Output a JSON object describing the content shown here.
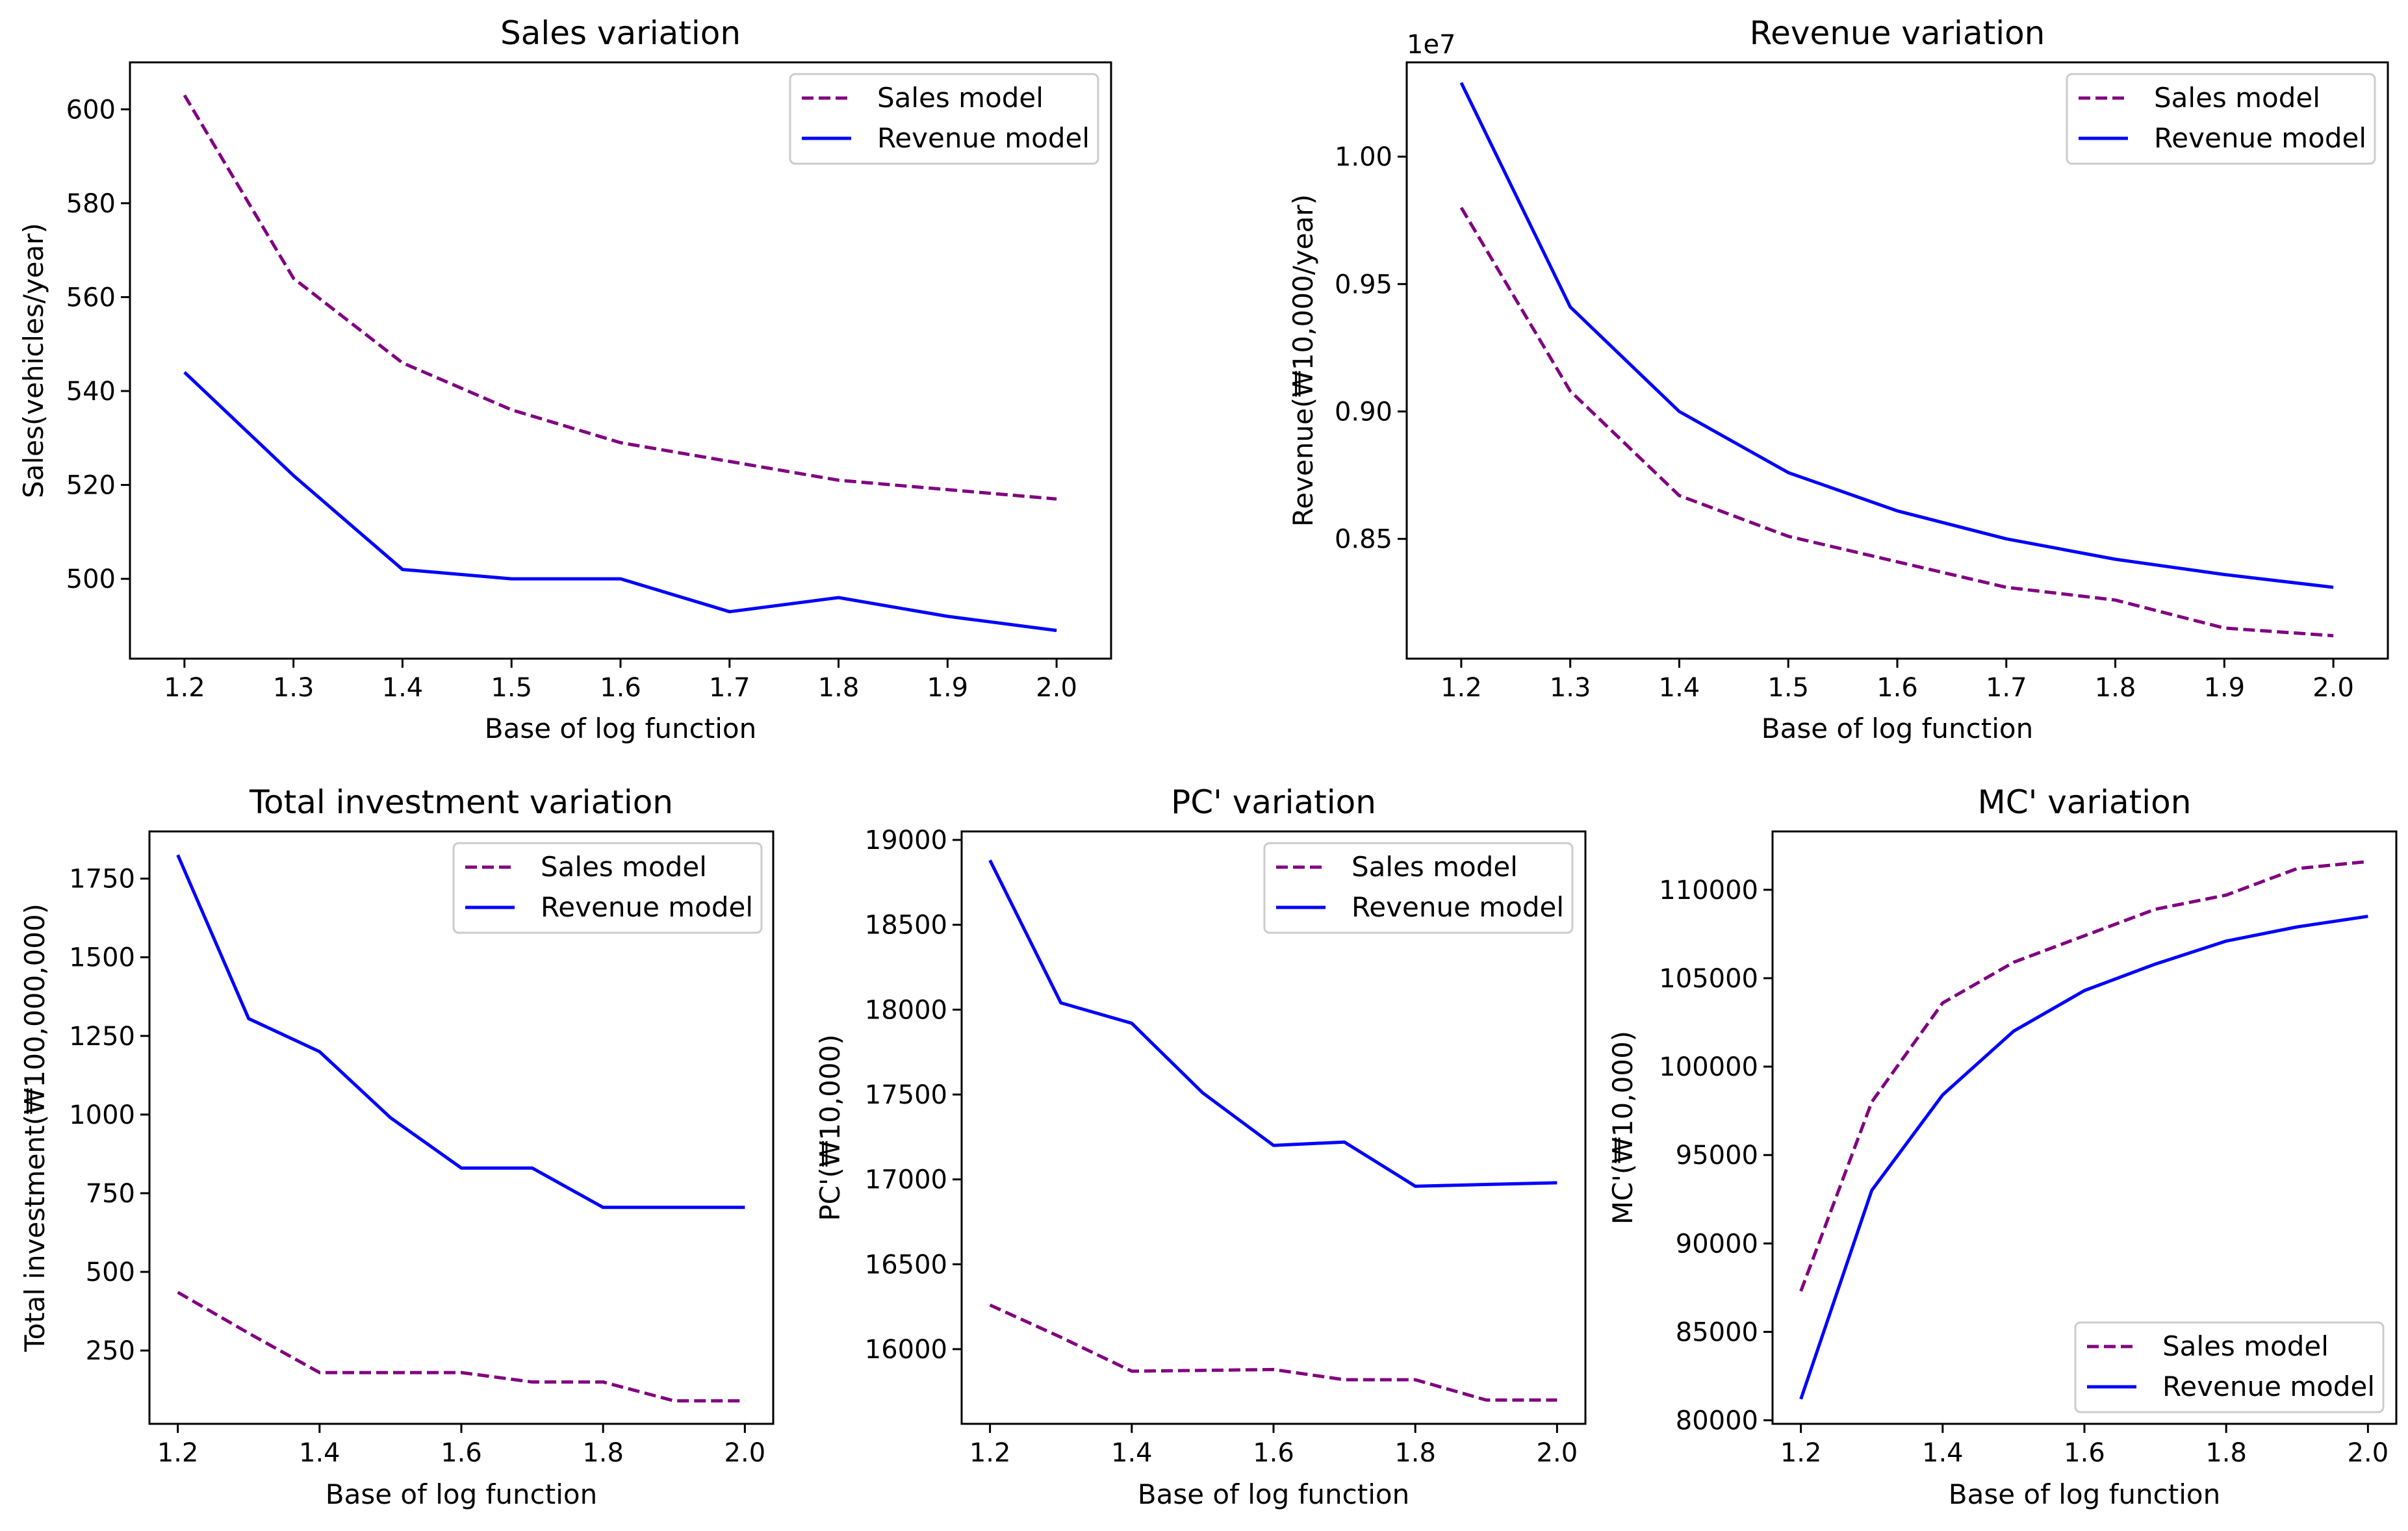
{
  "figure": {
    "colors": {
      "sales": "#800080",
      "revenue": "#0000ff"
    }
  },
  "chart_data": [
    {
      "type": "line",
      "title": "Sales variation",
      "xlabel": "Base of log function",
      "ylabel": "Sales(vehicles/year)",
      "xlim": [
        1.15,
        2.05
      ],
      "ylim": [
        483,
        610
      ],
      "xticks": [
        1.2,
        1.3,
        1.4,
        1.5,
        1.6,
        1.7,
        1.8,
        1.9,
        2.0
      ],
      "xtick_labels": [
        "1.2",
        "1.3",
        "1.4",
        "1.5",
        "1.6",
        "1.7",
        "1.8",
        "1.9",
        "2.0"
      ],
      "yticks": [
        500,
        520,
        540,
        560,
        580,
        600
      ],
      "ytick_labels": [
        "500",
        "520",
        "540",
        "560",
        "580",
        "600"
      ],
      "offset_label": "",
      "legend_position": "upper right",
      "x": [
        1.2,
        1.3,
        1.4,
        1.5,
        1.6,
        1.7,
        1.8,
        1.9,
        2.0
      ],
      "series": [
        {
          "name": "Sales model",
          "style": "dashed",
          "color": "#800080",
          "values": [
            603,
            564,
            546,
            536,
            529,
            525,
            521,
            519,
            517
          ]
        },
        {
          "name": "Revenue model",
          "style": "solid",
          "color": "#0000ff",
          "values": [
            544,
            522,
            502,
            500,
            500,
            493,
            496,
            492,
            489
          ]
        }
      ]
    },
    {
      "type": "line",
      "title": "Revenue variation",
      "xlabel": "Base of log function",
      "ylabel": "Revenue(₩10,000/year)",
      "xlim": [
        1.15,
        2.05
      ],
      "ylim": [
        0.803,
        1.037
      ],
      "xticks": [
        1.2,
        1.3,
        1.4,
        1.5,
        1.6,
        1.7,
        1.8,
        1.9,
        2.0
      ],
      "xtick_labels": [
        "1.2",
        "1.3",
        "1.4",
        "1.5",
        "1.6",
        "1.7",
        "1.8",
        "1.9",
        "2.0"
      ],
      "yticks": [
        0.85,
        0.9,
        0.95,
        1.0
      ],
      "ytick_labels": [
        "0.85",
        "0.90",
        "0.95",
        "1.00"
      ],
      "offset_label": "1e7",
      "legend_position": "upper right",
      "x": [
        1.2,
        1.3,
        1.4,
        1.5,
        1.6,
        1.7,
        1.8,
        1.9,
        2.0
      ],
      "series": [
        {
          "name": "Sales model",
          "style": "dashed",
          "color": "#800080",
          "values": [
            0.98,
            0.908,
            0.867,
            0.851,
            0.841,
            0.831,
            0.826,
            0.815,
            0.812
          ]
        },
        {
          "name": "Revenue model",
          "style": "solid",
          "color": "#0000ff",
          "values": [
            1.029,
            0.941,
            0.9,
            0.876,
            0.861,
            0.85,
            0.842,
            0.836,
            0.831
          ]
        }
      ]
    },
    {
      "type": "line",
      "title": "Total investment variation",
      "xlabel": "Base of log function",
      "ylabel": "Total investment(₩100,000,000)",
      "xlim": [
        1.16,
        2.04
      ],
      "ylim": [
        17,
        1900
      ],
      "xticks": [
        1.2,
        1.4,
        1.6,
        1.8,
        2.0
      ],
      "xtick_labels": [
        "1.2",
        "1.4",
        "1.6",
        "1.8",
        "2.0"
      ],
      "yticks": [
        250,
        500,
        750,
        1000,
        1250,
        1500,
        1750
      ],
      "ytick_labels": [
        "250",
        "500",
        "750",
        "1000",
        "1250",
        "1500",
        "1750"
      ],
      "offset_label": "",
      "legend_position": "upper right",
      "x": [
        1.2,
        1.3,
        1.4,
        1.5,
        1.6,
        1.7,
        1.8,
        1.9,
        2.0
      ],
      "series": [
        {
          "name": "Sales model",
          "style": "dashed",
          "color": "#800080",
          "values": [
            435,
            305,
            180,
            180,
            180,
            150,
            150,
            90,
            90
          ]
        },
        {
          "name": "Revenue model",
          "style": "solid",
          "color": "#0000ff",
          "values": [
            1825,
            1305,
            1200,
            990,
            830,
            830,
            705,
            705,
            705
          ]
        }
      ]
    },
    {
      "type": "line",
      "title": "PC' variation",
      "xlabel": "Base of log function",
      "ylabel": "PC'(₩10,000)",
      "xlim": [
        1.16,
        2.04
      ],
      "ylim": [
        15560,
        19050
      ],
      "xticks": [
        1.2,
        1.4,
        1.6,
        1.8,
        2.0
      ],
      "xtick_labels": [
        "1.2",
        "1.4",
        "1.6",
        "1.8",
        "2.0"
      ],
      "yticks": [
        16000,
        16500,
        17000,
        17500,
        18000,
        18500,
        19000
      ],
      "ytick_labels": [
        "16000",
        "16500",
        "17000",
        "17500",
        "18000",
        "18500",
        "19000"
      ],
      "offset_label": "",
      "legend_position": "upper right",
      "x": [
        1.2,
        1.3,
        1.4,
        1.5,
        1.6,
        1.7,
        1.8,
        1.9,
        2.0
      ],
      "series": [
        {
          "name": "Sales model",
          "style": "dashed",
          "color": "#800080",
          "values": [
            16260,
            16070,
            15870,
            15875,
            15880,
            15820,
            15820,
            15700,
            15700
          ]
        },
        {
          "name": "Revenue model",
          "style": "solid",
          "color": "#0000ff",
          "values": [
            18880,
            18040,
            17920,
            17510,
            17200,
            17220,
            16960,
            16970,
            16980
          ]
        }
      ]
    },
    {
      "type": "line",
      "title": "MC' variation",
      "xlabel": "Base of log function",
      "ylabel": "MC'(₩10,000)",
      "xlim": [
        1.16,
        2.04
      ],
      "ylim": [
        79800,
        113300
      ],
      "xticks": [
        1.2,
        1.4,
        1.6,
        1.8,
        2.0
      ],
      "xtick_labels": [
        "1.2",
        "1.4",
        "1.6",
        "1.8",
        "2.0"
      ],
      "yticks": [
        80000,
        85000,
        90000,
        95000,
        100000,
        105000,
        110000
      ],
      "ytick_labels": [
        "80000",
        "85000",
        "90000",
        "95000",
        "100000",
        "105000",
        "110000"
      ],
      "offset_label": "",
      "legend_position": "lower right",
      "x": [
        1.2,
        1.3,
        1.4,
        1.5,
        1.6,
        1.7,
        1.8,
        1.9,
        2.0
      ],
      "series": [
        {
          "name": "Sales model",
          "style": "dashed",
          "color": "#800080",
          "values": [
            87300,
            98000,
            103600,
            105900,
            107400,
            108900,
            109700,
            111200,
            111600
          ]
        },
        {
          "name": "Revenue model",
          "style": "solid",
          "color": "#0000ff",
          "values": [
            81200,
            93000,
            98400,
            102000,
            104300,
            105800,
            107100,
            107900,
            108500
          ]
        }
      ]
    }
  ]
}
